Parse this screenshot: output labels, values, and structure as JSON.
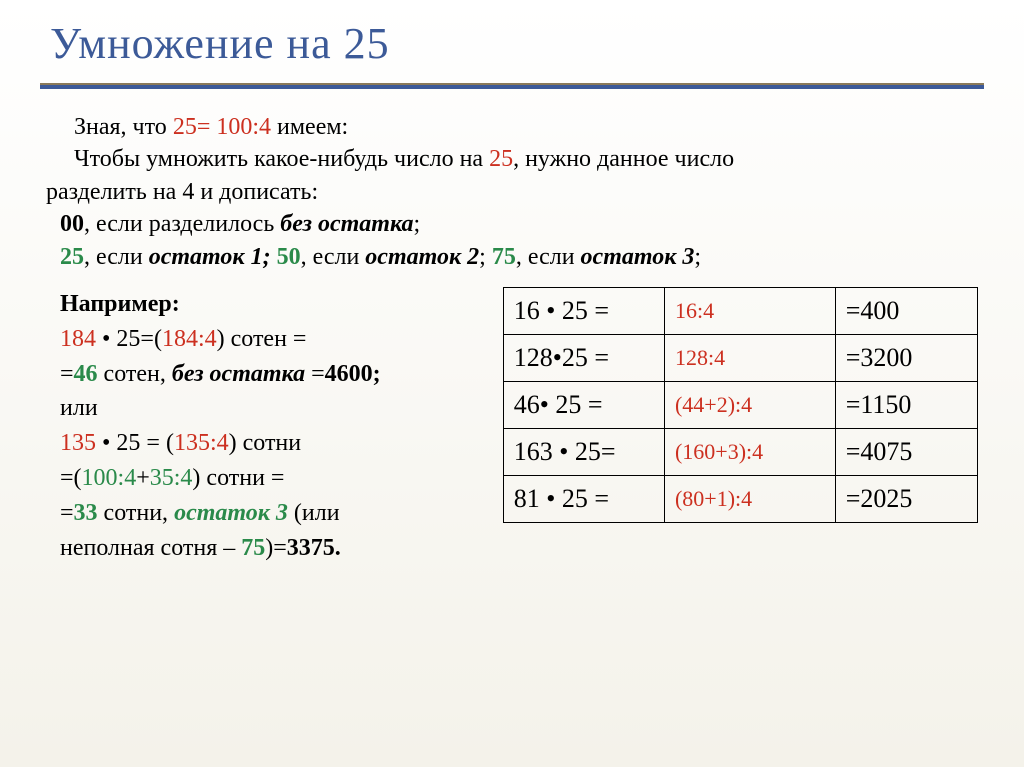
{
  "colors": {
    "title": "#3c5a98",
    "accent_red": "#cc3020",
    "accent_green": "#2a8a4a",
    "text": "#000000",
    "divider_top": "#8a7a5a",
    "divider_bottom": "#3c5a98"
  },
  "title": "Умножение  на  25",
  "intro": {
    "line1_a": "Зная, что ",
    "line1_b": "25= 100:4",
    "line1_c": " имеем:",
    "line2_a": "Чтобы умножить какое-нибудь число на ",
    "line2_b": "25",
    "line2_c": ", нужно данное число",
    "line3": "разделить на   4 и дописать:",
    "line4_a": "00",
    "line4_b": ", если разделилось ",
    "line4_c": "без остатка",
    "line4_d": ";",
    "line5_a": "25",
    "line5_b": ", если ",
    "line5_c": "остаток 1;",
    "line5_d": "  50",
    "line5_e": ", если ",
    "line5_f": "остаток 2",
    "line5_g": ";  ",
    "line5_h": "75",
    "line5_i": ", если ",
    "line5_j": "остаток 3",
    "line5_k": ";"
  },
  "example": {
    "heading": "Например:",
    "l1_a": "184",
    "l1_b": " • 25=(",
    "l1_c": "184",
    "l1_d": ":4",
    "l1_e": ") сотен =",
    "l2_a": "=",
    "l2_b": "46",
    "l2_c": " сотен, ",
    "l2_d": "без остатка",
    "l2_e": " =",
    "l2_f": "4600;",
    "l3": "или",
    "l4_a": "135",
    "l4_b": " • 25 = (",
    "l4_c": "135:4",
    "l4_d": ") сотни",
    "l5_a": "=(",
    "l5_b": "100:4",
    "l5_c": "+",
    "l5_d": "35:4",
    "l5_e": ") сотни =",
    "l6_a": "=",
    "l6_b": "33",
    "l6_c": " сотни,    ",
    "l6_d": "остаток 3",
    "l6_e": " (или",
    "l7_a": "неполная сотня – ",
    "l7_b": "75",
    "l7_c": ")=",
    "l7_d": "3375."
  },
  "table": {
    "rows": [
      {
        "expr": "16 • 25 =",
        "hint": "16:4",
        "hint_color": "#cc3020",
        "result": "=400"
      },
      {
        "expr": "128•25 =",
        "hint": "128:4",
        "hint_color": "#cc3020",
        "result": "=3200"
      },
      {
        "expr": "46• 25 =",
        "hint": "(44+2):4",
        "hint_color": "#cc3020",
        "result": "=1150"
      },
      {
        "expr": "163 • 25=",
        "hint": "(160+3):4",
        "hint_color": "#cc3020",
        "result": "=4075"
      },
      {
        "expr": "81 • 25 =",
        "hint": "(80+1):4",
        "hint_color": "#cc3020",
        "result": "=2025"
      }
    ]
  }
}
